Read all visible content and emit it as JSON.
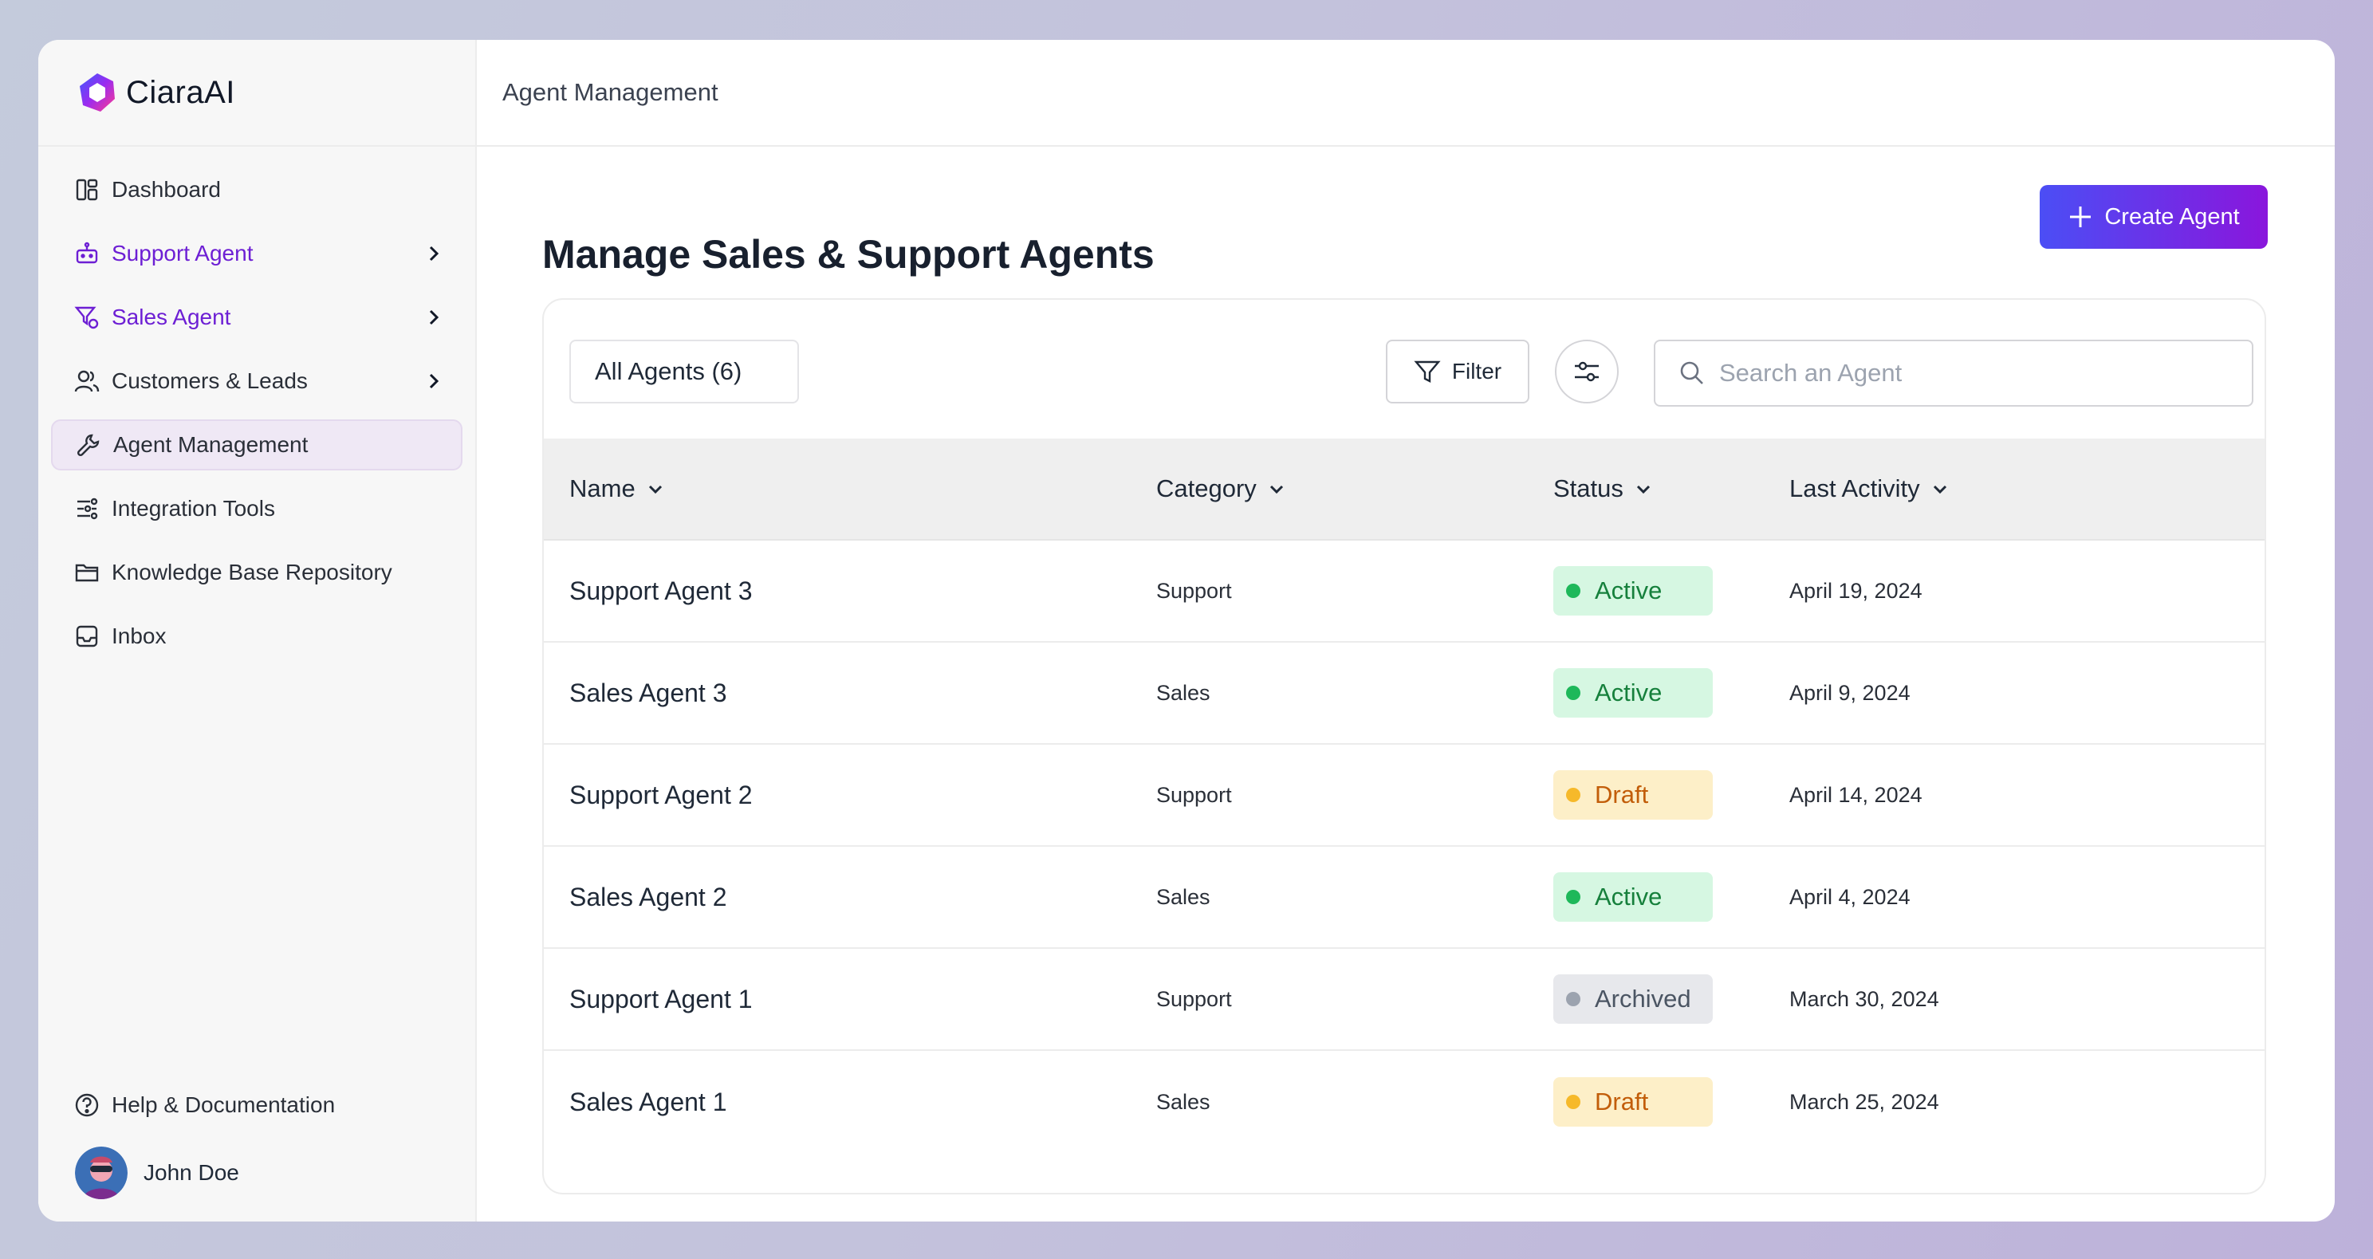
{
  "app": {
    "brand": "CiaraAI"
  },
  "sidebar": {
    "items": [
      {
        "label": "Dashboard",
        "icon": "dashboard-icon"
      },
      {
        "label": "Support Agent",
        "icon": "robot-icon",
        "has_chevron": true
      },
      {
        "label": "Sales Agent",
        "icon": "sales-filter-icon",
        "has_chevron": true
      },
      {
        "label": "Customers & Leads",
        "icon": "users-icon",
        "has_chevron": true
      },
      {
        "label": "Agent Management",
        "icon": "wrench-icon",
        "active": true
      },
      {
        "label": "Integration Tools",
        "icon": "integration-icon"
      },
      {
        "label": "Knowledge Base Repository",
        "icon": "folder-icon"
      },
      {
        "label": "Inbox",
        "icon": "inbox-icon"
      }
    ],
    "help_label": "Help & Documentation",
    "user_name": "John Doe"
  },
  "header": {
    "breadcrumb": "Agent Management"
  },
  "main": {
    "title": "Manage Sales & Support Agents",
    "create_label": "Create Agent",
    "tab_label": "All Agents (6)",
    "filter_label": "Filter",
    "search_placeholder": "Search an Agent",
    "columns": [
      "Name",
      "Category",
      "Status",
      "Last Activity"
    ],
    "rows": [
      {
        "name": "Support Agent 3",
        "category": "Support",
        "status": "Active",
        "date": "April 19, 2024"
      },
      {
        "name": "Sales Agent 3",
        "category": "Sales",
        "status": "Active",
        "date": "April 9, 2024"
      },
      {
        "name": "Support Agent 2",
        "category": "Support",
        "status": "Draft",
        "date": "April 14, 2024"
      },
      {
        "name": "Sales Agent 2",
        "category": "Sales",
        "status": "Active",
        "date": "April 4, 2024"
      },
      {
        "name": "Support Agent 1",
        "category": "Support",
        "status": "Archived",
        "date": "March 30, 2024"
      },
      {
        "name": "Sales Agent 1",
        "category": "Sales",
        "status": "Draft",
        "date": "March 25, 2024"
      }
    ]
  },
  "colors": {
    "accent_purple": "#6d1fd4",
    "button_gradient_start": "#4b4ef5",
    "button_gradient_end": "#8a16dc",
    "status_active": "#16803c",
    "status_draft": "#c25d09",
    "status_archived": "#4b5563"
  }
}
